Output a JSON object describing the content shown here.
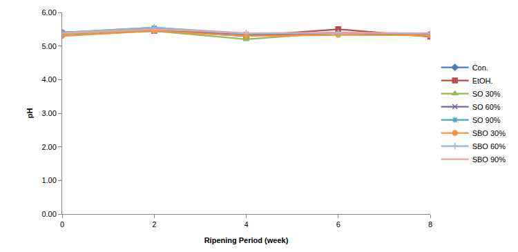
{
  "chart_data": {
    "type": "line",
    "x_label": "Ripening Period (week)",
    "y_label": "pH",
    "x": [
      0,
      2,
      4,
      6,
      8
    ],
    "xlim": [
      0,
      8
    ],
    "xticks": [
      0,
      2,
      4,
      6,
      8
    ],
    "ylim": [
      0,
      6
    ],
    "yticks": [
      {
        "value": 0,
        "label": "0.00"
      },
      {
        "value": 1,
        "label": "1.00"
      },
      {
        "value": 2,
        "label": "2.00"
      },
      {
        "value": 3,
        "label": "3.00"
      },
      {
        "value": 4,
        "label": "4.00"
      },
      {
        "value": 5,
        "label": "5.00"
      },
      {
        "value": 6,
        "label": "6.00"
      }
    ],
    "grid": false,
    "legend": "right",
    "series": [
      {
        "name": "Con.",
        "color": "#4a7ebb",
        "marker": "diamond",
        "values": [
          5.4,
          5.5,
          5.3,
          5.4,
          5.35
        ]
      },
      {
        "name": "EtOH.",
        "color": "#be4b48",
        "marker": "square",
        "values": [
          5.35,
          5.45,
          5.3,
          5.5,
          5.28
        ]
      },
      {
        "name": "SO 30%",
        "color": "#98b954",
        "marker": "triangle",
        "values": [
          5.35,
          5.45,
          5.2,
          5.4,
          5.3
        ]
      },
      {
        "name": "SO 60%",
        "color": "#7d60a0",
        "marker": "x",
        "values": [
          5.4,
          5.52,
          5.35,
          5.38,
          5.35
        ]
      },
      {
        "name": "SO 90%",
        "color": "#46aac5",
        "marker": "star",
        "values": [
          5.4,
          5.55,
          5.35,
          5.4,
          5.35
        ]
      },
      {
        "name": "SBO 30%",
        "color": "#f69240",
        "marker": "circle",
        "values": [
          5.3,
          5.45,
          5.3,
          5.33,
          5.32
        ]
      },
      {
        "name": "SBO 60%",
        "color": "#95b3d7",
        "marker": "plus",
        "values": [
          5.4,
          5.55,
          5.38,
          5.38,
          5.38
        ]
      },
      {
        "name": "SBO 90%",
        "color": "#e6a6a6",
        "marker": "none",
        "values": [
          5.38,
          5.5,
          5.38,
          5.4,
          5.38
        ]
      }
    ]
  }
}
